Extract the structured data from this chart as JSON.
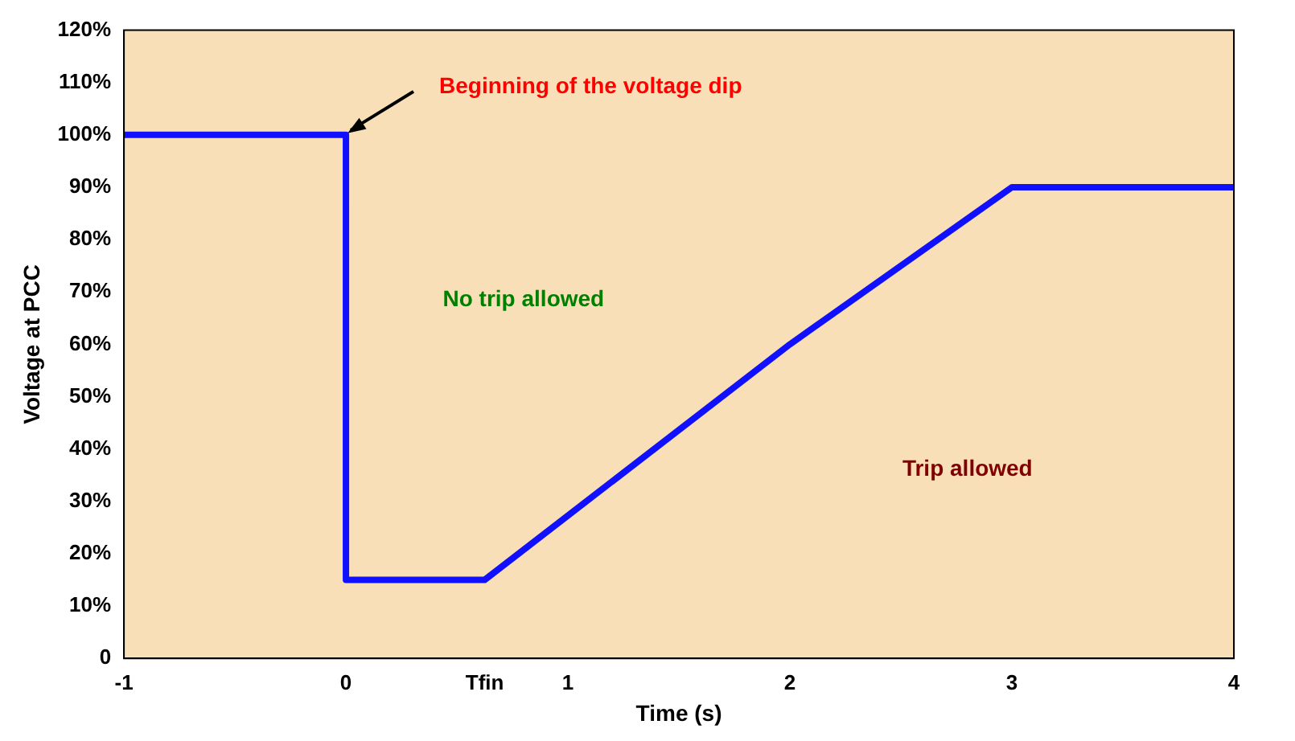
{
  "chart_data": {
    "type": "line",
    "xlabel": "Time (s)",
    "ylabel": "Voltage at PCC",
    "xlim": [
      -1,
      4
    ],
    "xticks": [
      -1,
      0,
      {
        "value": 0.625,
        "label": "Tfin"
      },
      1,
      2,
      3,
      4
    ],
    "ylim": [
      0,
      120
    ],
    "yticks": [
      0,
      {
        "value": 10,
        "label": "10%"
      },
      {
        "value": 20,
        "label": "20%"
      },
      {
        "value": 30,
        "label": "30%"
      },
      {
        "value": 40,
        "label": "40%"
      },
      {
        "value": 50,
        "label": "50%"
      },
      {
        "value": 60,
        "label": "60%"
      },
      {
        "value": 70,
        "label": "70%"
      },
      {
        "value": 80,
        "label": "80%"
      },
      {
        "value": 90,
        "label": "90%"
      },
      {
        "value": 100,
        "label": "100%"
      },
      {
        "value": 110,
        "label": "110%"
      },
      {
        "value": 120,
        "label": "120%"
      }
    ],
    "series": [
      {
        "color": "#1010ff",
        "x": [
          -1,
          0,
          0,
          0.625,
          2,
          3,
          4
        ],
        "values": [
          100,
          100,
          15,
          15,
          60,
          90,
          90
        ]
      }
    ],
    "annotations": [
      {
        "text": "Beginning of the voltage dip",
        "x": 0,
        "y": 100
      },
      "No trip allowed",
      "Trip allowed"
    ],
    "grid": false,
    "legend": false,
    "marker": "none",
    "line_style": "solid"
  }
}
